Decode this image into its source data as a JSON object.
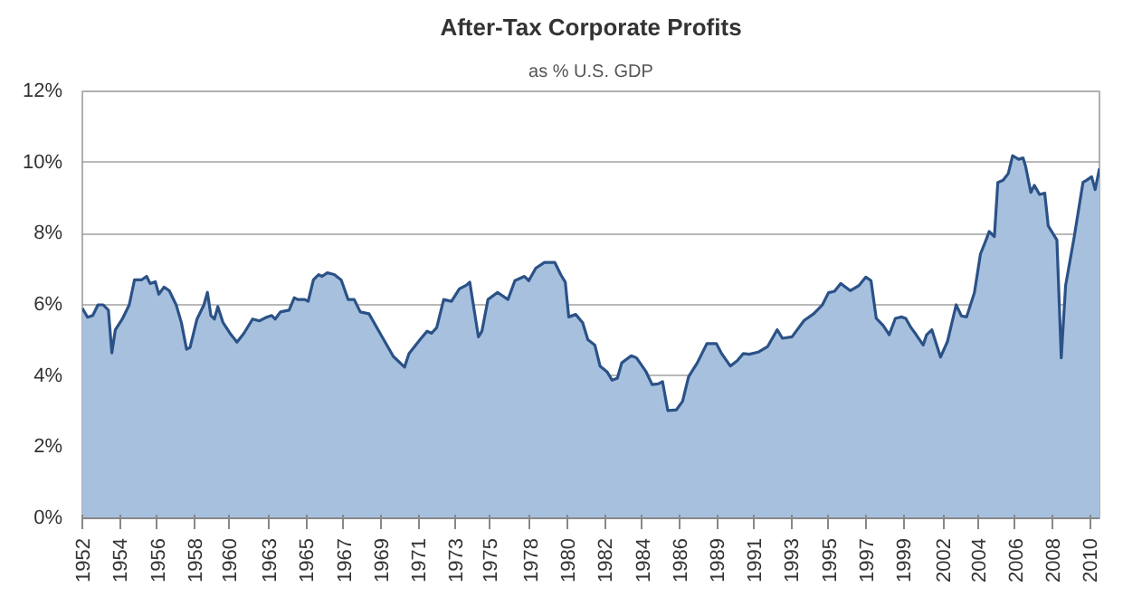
{
  "chart_data": {
    "type": "area",
    "title": "After-Tax Corporate Profits",
    "subtitle": "as % U.S. GDP",
    "x": [
      1952.0,
      1952.3,
      1952.6,
      1952.9,
      1953.2,
      1953.5,
      1953.7,
      1953.9,
      1954.3,
      1954.7,
      1955.0,
      1955.4,
      1955.7,
      1955.9,
      1956.2,
      1956.4,
      1956.7,
      1957.0,
      1957.4,
      1957.7,
      1958.0,
      1958.2,
      1958.6,
      1959.0,
      1959.2,
      1959.4,
      1959.6,
      1959.8,
      1960.1,
      1960.5,
      1960.9,
      1961.3,
      1961.8,
      1962.2,
      1962.6,
      1962.9,
      1963.1,
      1963.4,
      1963.9,
      1964.2,
      1964.4,
      1964.8,
      1965.0,
      1965.3,
      1965.6,
      1965.8,
      1966.1,
      1966.5,
      1966.9,
      1967.3,
      1967.65,
      1968.0,
      1968.5,
      1969.2,
      1969.9,
      1970.55,
      1970.8,
      1971.5,
      1971.85,
      1972.1,
      1972.4,
      1972.8,
      1973.25,
      1973.7,
      1974.1,
      1974.3,
      1974.8,
      1975.0,
      1975.35,
      1975.9,
      1976.5,
      1976.9,
      1977.45,
      1977.7,
      1978.1,
      1978.6,
      1979.2,
      1979.55,
      1979.8,
      1980.0,
      1980.4,
      1980.8,
      1981.1,
      1981.5,
      1981.8,
      1982.2,
      1982.5,
      1982.8,
      1983.05,
      1983.6,
      1983.9,
      1984.45,
      1984.8,
      1985.15,
      1985.4,
      1985.7,
      1986.2,
      1986.55,
      1986.9,
      1987.4,
      1987.95,
      1988.5,
      1988.8,
      1989.3,
      1989.7,
      1990.05,
      1990.4,
      1990.9,
      1991.45,
      1992.0,
      1992.3,
      1992.85,
      1993.55,
      1994.1,
      1994.6,
      1994.95,
      1995.3,
      1995.65,
      1996.2,
      1996.7,
      1997.1,
      1997.4,
      1997.7,
      1998.1,
      1998.45,
      1998.8,
      1999.15,
      1999.4,
      1999.7,
      2000.0,
      2000.4,
      2000.6,
      2000.9,
      2001.4,
      2001.8,
      2002.3,
      2002.6,
      2002.9,
      2003.35,
      2003.7,
      2004.05,
      2004.2,
      2004.5,
      2004.7,
      2005.0,
      2005.3,
      2005.55,
      2005.9,
      2006.15,
      2006.3,
      2006.6,
      2006.8,
      2007.1,
      2007.4,
      2007.6,
      2008.1,
      2008.35,
      2008.6,
      2009.1,
      2009.6,
      2009.8,
      2010.1,
      2010.3,
      2010.55
    ],
    "series": [
      {
        "color": "#a7c0de",
        "values": [
          5.9,
          5.65,
          5.7,
          6.0,
          6.0,
          5.85,
          4.65,
          5.3,
          5.6,
          6.0,
          6.7,
          6.7,
          6.8,
          6.6,
          6.65,
          6.3,
          6.5,
          6.4,
          6.0,
          5.5,
          4.75,
          4.8,
          5.6,
          6.0,
          6.35,
          5.7,
          5.6,
          5.95,
          5.5,
          5.2,
          4.95,
          5.2,
          5.6,
          5.55,
          5.65,
          5.7,
          5.6,
          5.8,
          5.85,
          6.2,
          6.15,
          6.15,
          6.1,
          6.7,
          6.85,
          6.8,
          6.9,
          6.85,
          6.7,
          6.15,
          6.15,
          5.8,
          5.75,
          5.15,
          4.55,
          4.25,
          4.63,
          5.06,
          5.26,
          5.2,
          5.36,
          6.15,
          6.1,
          6.45,
          6.55,
          6.64,
          5.1,
          5.26,
          6.15,
          6.35,
          6.15,
          6.68,
          6.8,
          6.68,
          7.03,
          7.19,
          7.19,
          6.84,
          6.64,
          5.66,
          5.73,
          5.5,
          5.02,
          4.87,
          4.28,
          4.12,
          3.88,
          3.94,
          4.37,
          4.57,
          4.51,
          4.12,
          3.76,
          3.78,
          3.84,
          3.03,
          3.05,
          3.29,
          3.98,
          4.37,
          4.91,
          4.91,
          4.63,
          4.28,
          4.43,
          4.63,
          4.61,
          4.67,
          4.83,
          5.3,
          5.06,
          5.1,
          5.56,
          5.75,
          6.0,
          6.34,
          6.38,
          6.6,
          6.4,
          6.54,
          6.78,
          6.68,
          5.62,
          5.42,
          5.16,
          5.62,
          5.66,
          5.62,
          5.36,
          5.16,
          4.87,
          5.16,
          5.3,
          4.53,
          4.97,
          6.0,
          5.69,
          5.66,
          6.34,
          7.43,
          7.86,
          8.06,
          7.92,
          9.44,
          9.5,
          9.69,
          10.19,
          10.09,
          10.13,
          9.89,
          9.16,
          9.36,
          9.1,
          9.14,
          8.22,
          7.82,
          4.51,
          6.54,
          7.92,
          9.44,
          9.5,
          9.6,
          9.24,
          9.83
        ]
      }
    ],
    "xlim": [
      1952.0,
      2010.55
    ],
    "xticks": [
      {
        "value": 1952.0,
        "label": "1952"
      },
      {
        "value": 1954.15,
        "label": "1954"
      },
      {
        "value": 1956.3,
        "label": "1956"
      },
      {
        "value": 1958.44,
        "label": "1958"
      },
      {
        "value": 1960.45,
        "label": "1960"
      },
      {
        "value": 1962.74,
        "label": "1963"
      },
      {
        "value": 1964.89,
        "label": "1965"
      },
      {
        "value": 1967.04,
        "label": "1967"
      },
      {
        "value": 1969.19,
        "label": "1969"
      },
      {
        "value": 1971.33,
        "label": "1971"
      },
      {
        "value": 1973.48,
        "label": "1973"
      },
      {
        "value": 1975.45,
        "label": "1975"
      },
      {
        "value": 1977.78,
        "label": "1978"
      },
      {
        "value": 1979.93,
        "label": "1980"
      },
      {
        "value": 1982.07,
        "label": "1982"
      },
      {
        "value": 1984.22,
        "label": "1984"
      },
      {
        "value": 1986.37,
        "label": "1986"
      },
      {
        "value": 1988.52,
        "label": "1989"
      },
      {
        "value": 1990.67,
        "label": "1991"
      },
      {
        "value": 1992.81,
        "label": "1993"
      },
      {
        "value": 1994.96,
        "label": "1995"
      },
      {
        "value": 1997.11,
        "label": "1997"
      },
      {
        "value": 1999.26,
        "label": "1999"
      },
      {
        "value": 2001.55,
        "label": "2002"
      },
      {
        "value": 2003.56,
        "label": "2004"
      },
      {
        "value": 2005.7,
        "label": "2006"
      },
      {
        "value": 2007.85,
        "label": "2008"
      },
      {
        "value": 2010.0,
        "label": "2010"
      }
    ],
    "ylim": [
      0,
      12
    ],
    "yticks": [
      {
        "value": 0,
        "label": "0%"
      },
      {
        "value": 2,
        "label": "2%"
      },
      {
        "value": 4,
        "label": "4%"
      },
      {
        "value": 6,
        "label": "6%"
      },
      {
        "value": 8,
        "label": "8%"
      },
      {
        "value": 10,
        "label": "10%"
      },
      {
        "value": 12,
        "label": "12%"
      }
    ],
    "grid": "y"
  }
}
